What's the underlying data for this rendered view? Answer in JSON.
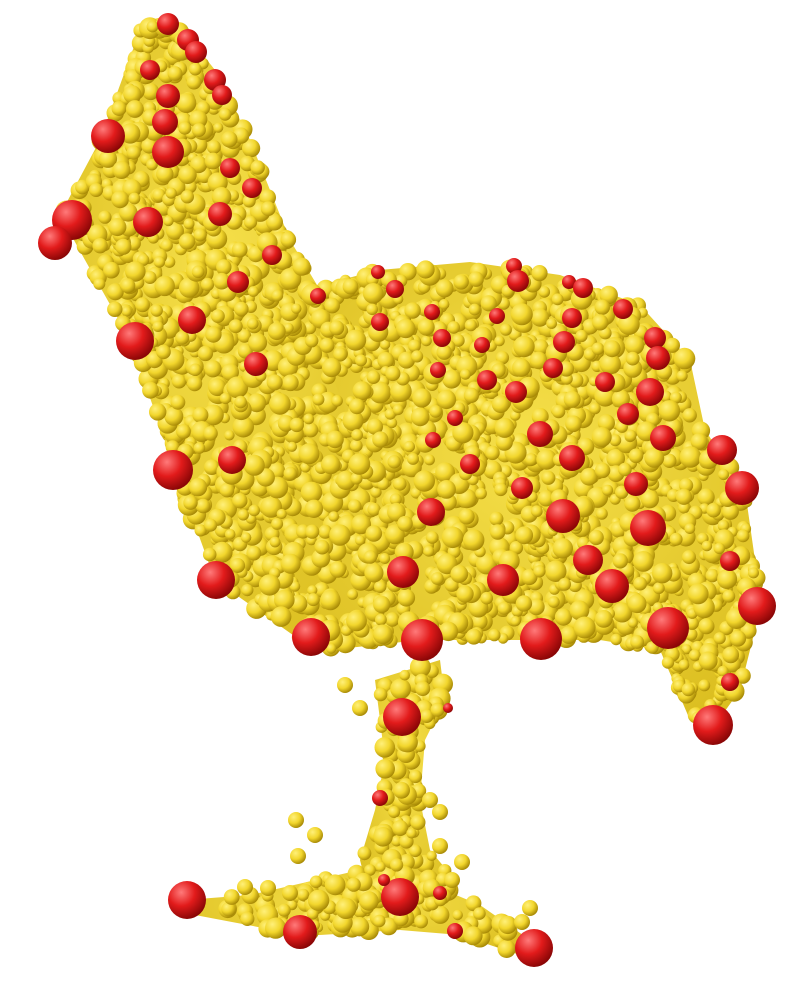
{
  "image": {
    "subject": "point-cloud-chair",
    "colors": {
      "background": "#ffffff",
      "point_light": "#fff07a",
      "point_base": "#f2d62c",
      "point_dark": "#a88a06",
      "keypoint_light": "#ff7a7a",
      "keypoint_base": "#e21b1b",
      "keypoint_dark": "#8a0606"
    }
  }
}
